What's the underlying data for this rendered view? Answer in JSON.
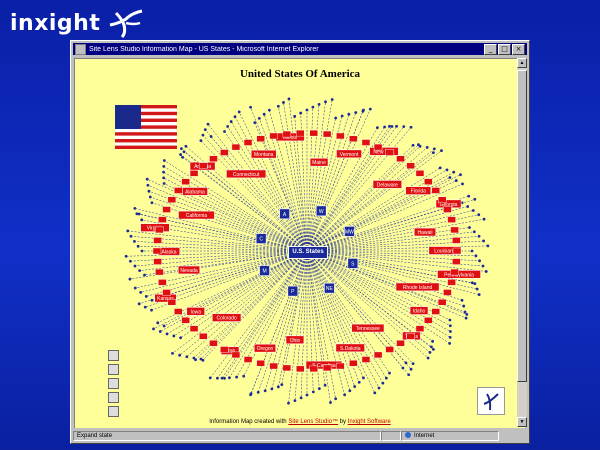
{
  "brand": {
    "name": "inxight"
  },
  "window": {
    "title": "Site Lens Studio Information Map - US States - Microsoft Internet Explorer",
    "buttons": {
      "minimize": "_",
      "maximize": "□",
      "close": "×"
    }
  },
  "map": {
    "title": "United States Of America",
    "center": "U.S. States",
    "region_labels": [
      "W",
      "MW",
      "S",
      "NE",
      "P",
      "M",
      "C",
      "A"
    ],
    "state_labels": [
      "Maine",
      "Vermont",
      "New York",
      "Delaware",
      "Florida",
      "Georgia",
      "Hawaii",
      "Louisiana",
      "Pennsylvania",
      "Rhode Island",
      "Idaho",
      "Texas",
      "Tennessee",
      "S.Dakota",
      "S.Carolina",
      "Ohio",
      "Oregon",
      "Utah",
      "Colorado",
      "Iowa",
      "Kansas",
      "Nevada",
      "Alaska",
      "Virginia",
      "California",
      "Alabama",
      "Arizona",
      "Connecticut",
      "Montana",
      "Illinois"
    ],
    "footer_prefix": "Information Map created with ",
    "footer_link1": "Site Lens Studio™",
    "footer_mid": " by ",
    "footer_link2": "Inxight Software"
  },
  "statusbar": {
    "left": "Expand state",
    "right": "Internet"
  }
}
